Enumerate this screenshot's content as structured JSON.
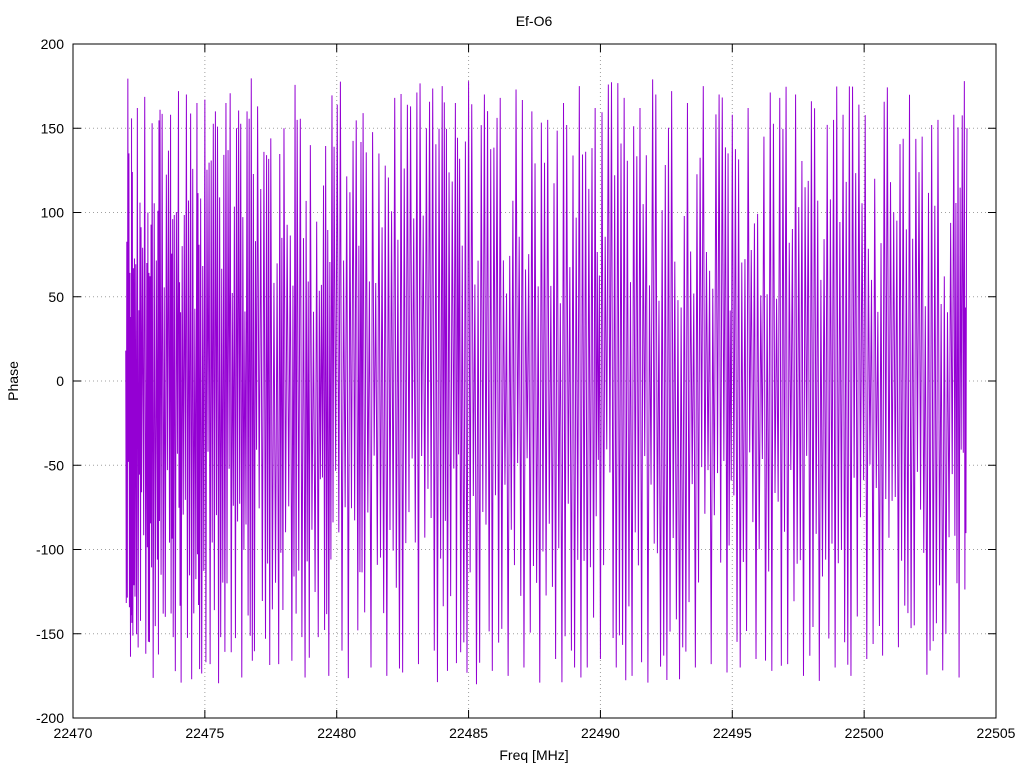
{
  "chart_data": {
    "type": "line",
    "title": "Ef-O6",
    "xlabel": "Freq [MHz]",
    "ylabel": "Phase",
    "xlim": [
      22470,
      22505
    ],
    "ylim": [
      -200,
      200
    ],
    "x_ticks": [
      22470,
      22475,
      22480,
      22485,
      22490,
      22495,
      22500,
      22505
    ],
    "y_ticks": [
      -200,
      -150,
      -100,
      -50,
      0,
      50,
      100,
      150,
      200
    ],
    "x_tick_labels": [
      "22470",
      "22475",
      "22480",
      "22485",
      "22490",
      "22495",
      "22500",
      "22505"
    ],
    "y_tick_labels": [
      "-200",
      "-150",
      "-100",
      "-50",
      "0",
      "50",
      "100",
      "150",
      "200"
    ],
    "grid": true,
    "grid_style": "dotted",
    "legend": "none",
    "series": [
      {
        "color": "#9400d3",
        "x_start": 22472.0,
        "x_end": 22503.9,
        "phase_range": [
          -180,
          180
        ],
        "sampled_extrema": [
          [
            22472.0,
            18
          ],
          [
            22472.1,
            -48
          ],
          [
            22472.2,
            38
          ],
          [
            22472.25,
            124
          ],
          [
            22472.35,
            -128
          ],
          [
            22472.5,
            42
          ],
          [
            22472.6,
            -66
          ],
          [
            22472.8,
            70
          ],
          [
            22472.9,
            -155
          ],
          [
            22473.0,
            153
          ],
          [
            22473.2,
            -106
          ],
          [
            22473.3,
            161
          ],
          [
            22473.5,
            -140
          ],
          [
            22473.7,
            158
          ],
          [
            22473.8,
            -152
          ],
          [
            22474.0,
            172
          ],
          [
            22474.1,
            -179
          ],
          [
            22474.3,
            170
          ],
          [
            22474.5,
            -177
          ],
          [
            22474.7,
            165
          ],
          [
            22474.8,
            -171
          ],
          [
            22475.0,
            167
          ],
          [
            22475.2,
            -168
          ],
          [
            22475.4,
            160
          ],
          [
            22475.6,
            -152
          ],
          [
            22475.8,
            165
          ],
          [
            22476.0,
            -161
          ],
          [
            22476.2,
            150
          ],
          [
            22476.4,
            -176
          ],
          [
            22476.6,
            160
          ],
          [
            22476.8,
            -166
          ],
          [
            22477.0,
            163
          ],
          [
            22477.3,
            -153
          ],
          [
            22477.5,
            144
          ],
          [
            22477.8,
            -168
          ],
          [
            22478.0,
            150
          ],
          [
            22478.3,
            -166
          ],
          [
            22478.5,
            155
          ],
          [
            22478.8,
            -176
          ],
          [
            22479.0,
            140
          ],
          [
            22479.3,
            -152
          ],
          [
            22479.5,
            116
          ],
          [
            22479.7,
            -175
          ],
          [
            22479.9,
            139
          ],
          [
            22480.2,
            -160
          ],
          [
            22480.5,
            112
          ],
          [
            22480.8,
            -148
          ],
          [
            22481.0,
            159
          ],
          [
            22481.3,
            -170
          ],
          [
            22481.6,
            135
          ],
          [
            22481.9,
            -175
          ],
          [
            22482.2,
            168
          ],
          [
            22482.5,
            -173
          ],
          [
            22482.8,
            163
          ],
          [
            22483.1,
            -168
          ],
          [
            22483.4,
            150
          ],
          [
            22483.7,
            -160
          ],
          [
            22484.0,
            175
          ],
          [
            22484.2,
            -172
          ],
          [
            22484.5,
            165
          ],
          [
            22484.7,
            -161
          ],
          [
            22485.0,
            178
          ],
          [
            22485.3,
            -180
          ],
          [
            22485.6,
            170
          ],
          [
            22485.9,
            -172
          ],
          [
            22486.2,
            168
          ],
          [
            22486.5,
            -175
          ],
          [
            22486.8,
            173
          ],
          [
            22487.1,
            -170
          ],
          [
            22487.4,
            160
          ],
          [
            22487.7,
            -179
          ],
          [
            22488.0,
            155
          ],
          [
            22488.3,
            -165
          ],
          [
            22488.6,
            165
          ],
          [
            22488.9,
            -160
          ],
          [
            22489.2,
            175
          ],
          [
            22489.5,
            -170
          ],
          [
            22489.8,
            162
          ],
          [
            22490.0,
            -165
          ],
          [
            22490.3,
            176
          ],
          [
            22490.6,
            -170
          ],
          [
            22490.9,
            168
          ],
          [
            22491.2,
            -175
          ],
          [
            22491.5,
            162
          ],
          [
            22491.8,
            -179
          ],
          [
            22492.1,
            170
          ],
          [
            22492.4,
            -163
          ],
          [
            22492.7,
            172
          ],
          [
            22493.0,
            -177
          ],
          [
            22493.3,
            165
          ],
          [
            22493.6,
            -170
          ],
          [
            22493.9,
            175
          ],
          [
            22494.2,
            -168
          ],
          [
            22494.5,
            170
          ],
          [
            22494.8,
            -173
          ],
          [
            22495.0,
            158
          ],
          [
            22495.3,
            -170
          ],
          [
            22495.6,
            162
          ],
          [
            22495.9,
            -165
          ],
          [
            22496.2,
            145
          ],
          [
            22496.5,
            -172
          ],
          [
            22496.8,
            168
          ],
          [
            22497.1,
            -168
          ],
          [
            22497.4,
            170
          ],
          [
            22497.7,
            -175
          ],
          [
            22498.0,
            166
          ],
          [
            22498.3,
            -178
          ],
          [
            22498.6,
            152
          ],
          [
            22498.9,
            -170
          ],
          [
            22499.2,
            158
          ],
          [
            22499.5,
            -175
          ],
          [
            22499.8,
            164
          ],
          [
            22500.1,
            -165
          ],
          [
            22500.4,
            120
          ],
          [
            22500.7,
            -163
          ],
          [
            22501.0,
            118
          ],
          [
            22501.3,
            -158
          ],
          [
            22501.6,
            90
          ],
          [
            22501.9,
            -145
          ],
          [
            22502.2,
            145
          ],
          [
            22502.5,
            -160
          ],
          [
            22502.8,
            155
          ],
          [
            22503.1,
            -150
          ],
          [
            22503.4,
            158
          ],
          [
            22503.6,
            -176
          ],
          [
            22503.8,
            178
          ],
          [
            22503.9,
            150
          ]
        ]
      }
    ]
  }
}
